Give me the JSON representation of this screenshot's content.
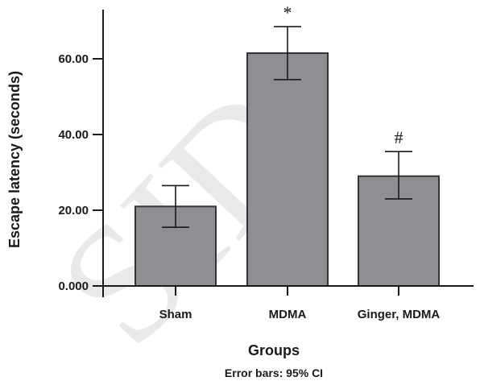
{
  "chart_data": {
    "type": "bar",
    "categories": [
      "Sham",
      "MDMA",
      "Ginger, MDMA"
    ],
    "values": [
      21.0,
      61.5,
      29.0
    ],
    "error_low": [
      15.5,
      54.5,
      23.0
    ],
    "error_high": [
      26.5,
      68.5,
      35.5
    ],
    "significance": [
      "",
      "*",
      "#"
    ],
    "yticks": [
      0,
      20,
      40,
      60
    ],
    "ytick_labels": [
      "0.000",
      "20.00",
      "40.00",
      "60.00"
    ],
    "ylim": [
      0,
      73
    ],
    "xlabel": "Groups",
    "ylabel": "Escape latency (seconds)",
    "note": "Error bars: 95% CI",
    "grid": false,
    "colors": {
      "bar_fill": "#8e8f93",
      "bar_stroke": "#333333",
      "axis": "#1a1a1a"
    }
  },
  "watermark_text": "SID"
}
